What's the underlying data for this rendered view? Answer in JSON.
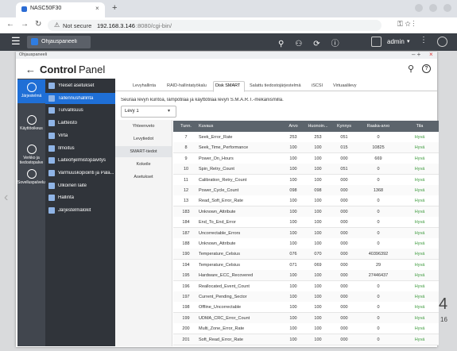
{
  "browser": {
    "tab_title": "NASC50F30",
    "new_tab": "+",
    "security": "Not secure",
    "url_host": "192.168.3.146",
    "url_path": ":8080/cgi-bin/"
  },
  "topbar": {
    "app_tab": "Ohjauspaneeli",
    "user": "admin"
  },
  "window": {
    "title": "Ohjauspaneeli",
    "app_name_bold": "Control",
    "app_name_light": "Panel"
  },
  "sidebar": {
    "items": [
      "Järjestelmä",
      "Käyttöoikeus",
      "Verkko ja tiedostopalve",
      "Sovelluspalvelut"
    ],
    "selected": 0
  },
  "menu": {
    "items": [
      "Yleiset asetukset",
      "Tallennushallinta",
      "Turvallisuus",
      "Laitteisto",
      "Virta",
      "Ilmoitus",
      "Laiteohjelmistopäivitys",
      "Varmuuskopiointi ja Pala...",
      "Ulkoinen laite",
      "Hallinta",
      "Järjestelmälokit"
    ],
    "selected": 1
  },
  "tabs": {
    "items": [
      "Levyhallinta",
      "RAID-hallintatyökalu",
      "Disk SMART",
      "Salattu tiedostojärjestelmä",
      "iSCSI",
      "Virtuaalilevy"
    ],
    "active": 2
  },
  "description": "Seuraa levyn kuntoa, lämpötilaa ja käyttötilaa levyn S.M.A.R.T.-mekanismilla.",
  "disk_select": "Levy 1",
  "subtabs": {
    "items": [
      "Yhteenveto",
      "Levytiedot",
      "SMART-tiedot",
      "Kokeile",
      "Asetukset"
    ],
    "active": 2
  },
  "table": {
    "columns": [
      "Tunn.",
      "Kuvaus",
      "Arvo",
      "Huonoin...",
      "Kynnys",
      "Raaka-arvo",
      "Tila"
    ],
    "rows": [
      [
        "7",
        "Seek_Error_Rate",
        "253",
        "253",
        "051",
        "0",
        "Hyvä"
      ],
      [
        "8",
        "Seek_Time_Performance",
        "100",
        "100",
        "015",
        "10825",
        "Hyvä"
      ],
      [
        "9",
        "Power_On_Hours",
        "100",
        "100",
        "000",
        "669",
        "Hyvä"
      ],
      [
        "10",
        "Spin_Retry_Count",
        "100",
        "100",
        "051",
        "0",
        "Hyvä"
      ],
      [
        "11",
        "Calibration_Retry_Count",
        "100",
        "100",
        "000",
        "0",
        "Hyvä"
      ],
      [
        "12",
        "Power_Cycle_Count",
        "098",
        "098",
        "000",
        "1368",
        "Hyvä"
      ],
      [
        "13",
        "Read_Soft_Error_Rate",
        "100",
        "100",
        "000",
        "0",
        "Hyvä"
      ],
      [
        "183",
        "Unknown_Attribute",
        "100",
        "100",
        "000",
        "0",
        "Hyvä"
      ],
      [
        "184",
        "End_To_End_Error",
        "100",
        "100",
        "000",
        "0",
        "Hyvä"
      ],
      [
        "187",
        "Uncorrectable_Errors",
        "100",
        "100",
        "000",
        "0",
        "Hyvä"
      ],
      [
        "188",
        "Unknown_Attribute",
        "100",
        "100",
        "000",
        "0",
        "Hyvä"
      ],
      [
        "190",
        "Temperature_Celsius",
        "076",
        "070",
        "000",
        "40396392",
        "Hyvä"
      ],
      [
        "194",
        "Temperature_Celsius",
        "071",
        "069",
        "000",
        "29",
        "Hyvä"
      ],
      [
        "195",
        "Hardware_ECC_Recovered",
        "100",
        "100",
        "000",
        "27446437",
        "Hyvä"
      ],
      [
        "196",
        "Reallocated_Event_Count",
        "100",
        "100",
        "000",
        "0",
        "Hyvä"
      ],
      [
        "197",
        "Current_Pending_Sector",
        "100",
        "100",
        "000",
        "0",
        "Hyvä"
      ],
      [
        "198",
        "Offline_Uncorrectable",
        "100",
        "100",
        "000",
        "0",
        "Hyvä"
      ],
      [
        "199",
        "UDMA_CRC_Error_Count",
        "100",
        "100",
        "000",
        "0",
        "Hyvä"
      ],
      [
        "200",
        "Multi_Zone_Error_Rate",
        "100",
        "100",
        "000",
        "0",
        "Hyvä"
      ],
      [
        "201",
        "Soft_Read_Error_Rate",
        "100",
        "100",
        "000",
        "0",
        "Hyvä"
      ]
    ]
  },
  "background": [
    "4",
    "16"
  ]
}
